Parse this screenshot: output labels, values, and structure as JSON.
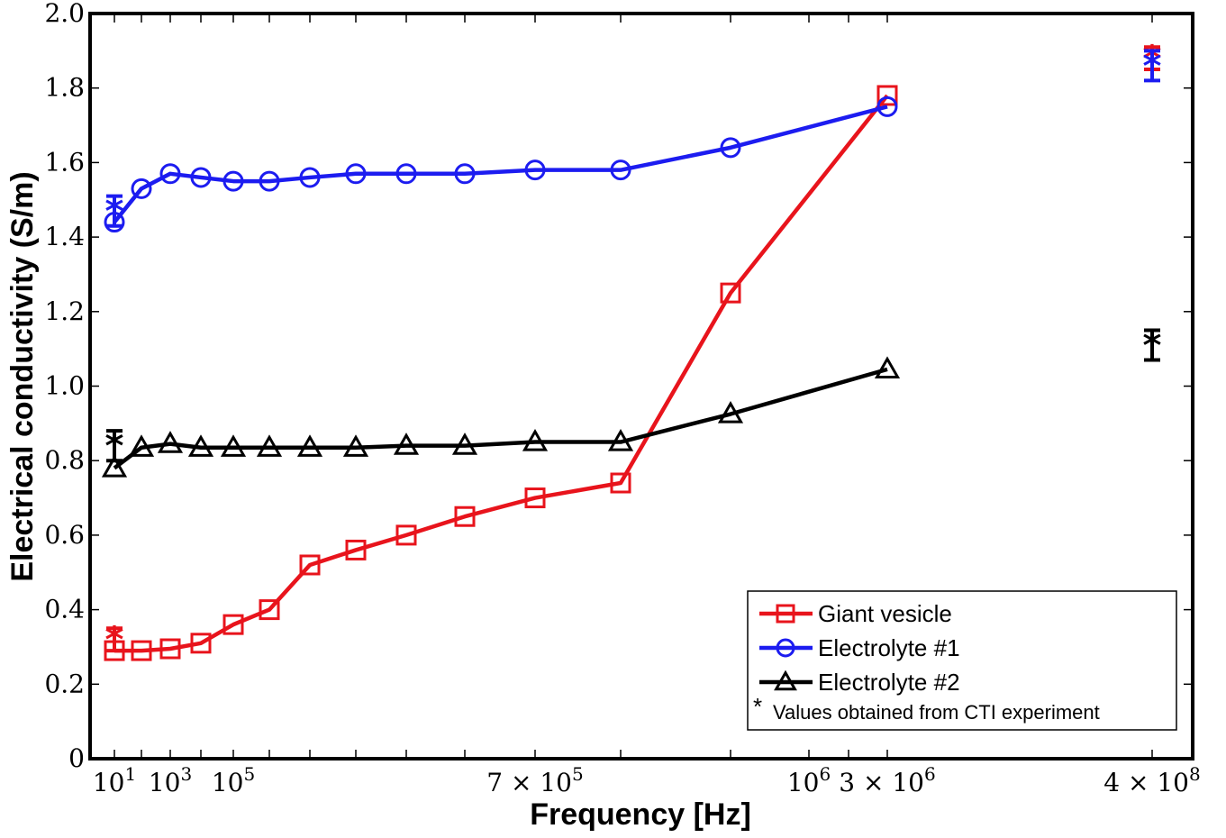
{
  "chart_data": {
    "type": "line",
    "xlabel": "Frequency [Hz]",
    "ylabel": "Electrical conductivity  (S/m)",
    "ylim": [
      0,
      2.0
    ],
    "yticks": [
      "0",
      "0.2",
      "0.4",
      "0.6",
      "0.8",
      "1.0",
      "1.2",
      "1.4",
      "1.6",
      "1.8",
      "2.0"
    ],
    "ytick_values": [
      0,
      0.2,
      0.4,
      0.6,
      0.8,
      1.0,
      1.2,
      1.4,
      1.6,
      1.8,
      2.0
    ],
    "xtick_labels": [
      {
        "index": 0,
        "base": "10",
        "exp": "1"
      },
      {
        "index": 2,
        "base": "10",
        "exp": "3"
      },
      {
        "index": 4,
        "base": "10",
        "exp": "5"
      },
      {
        "index": 10,
        "base": "7 × 10",
        "exp": "5"
      },
      {
        "index": 13,
        "base": "10",
        "exp": "6"
      },
      {
        "index": 15,
        "base": "3 × 10",
        "exp": "6"
      },
      {
        "index": 16,
        "base": "4 × 10",
        "exp": "8"
      }
    ],
    "x_count": 17,
    "series": [
      {
        "name": "Giant vesicle",
        "color": "#e8141c",
        "marker": "square",
        "values": [
          0.29,
          0.29,
          0.295,
          0.31,
          0.36,
          0.4,
          0.52,
          0.56,
          0.6,
          0.65,
          0.7,
          0.74,
          1.25,
          1.78
        ]
      },
      {
        "name": "Electrolyte #1",
        "color": "#1c1cf0",
        "marker": "circle",
        "values": [
          1.44,
          1.53,
          1.57,
          1.56,
          1.55,
          1.55,
          1.56,
          1.57,
          1.57,
          1.57,
          1.58,
          1.58,
          1.64,
          1.75
        ]
      },
      {
        "name": "Electrolyte #2",
        "color": "#000000",
        "marker": "triangle",
        "values": [
          0.78,
          0.835,
          0.845,
          0.835,
          0.835,
          0.835,
          0.835,
          0.835,
          0.84,
          0.84,
          0.85,
          0.85,
          0.925,
          1.045
        ]
      }
    ],
    "series_x_index": [
      0,
      1,
      2,
      3,
      4,
      5,
      6,
      7,
      8,
      9,
      10,
      11,
      12,
      15
    ],
    "cti_points": [
      {
        "series": "Giant vesicle",
        "x_index": 0,
        "value": 0.32,
        "error": 0.03
      },
      {
        "series": "Electrolyte #1",
        "x_index": 0,
        "value": 1.47,
        "error": 0.04
      },
      {
        "series": "Electrolyte #2",
        "x_index": 0,
        "value": 0.84,
        "error": 0.04
      },
      {
        "series": "Giant vesicle",
        "x_index": 16,
        "value": 1.88,
        "error": 0.03
      },
      {
        "series": "Electrolyte #1",
        "x_index": 16,
        "value": 1.86,
        "error": 0.04
      },
      {
        "series": "Electrolyte #2",
        "x_index": 16,
        "value": 1.11,
        "error": 0.04
      }
    ],
    "legend": {
      "position": "bottom-right",
      "entries": [
        "Giant vesicle",
        "Electrolyte #1",
        "Electrolyte #2"
      ],
      "note_star": "*",
      "note_text": "Values obtained from CTI experiment"
    }
  }
}
